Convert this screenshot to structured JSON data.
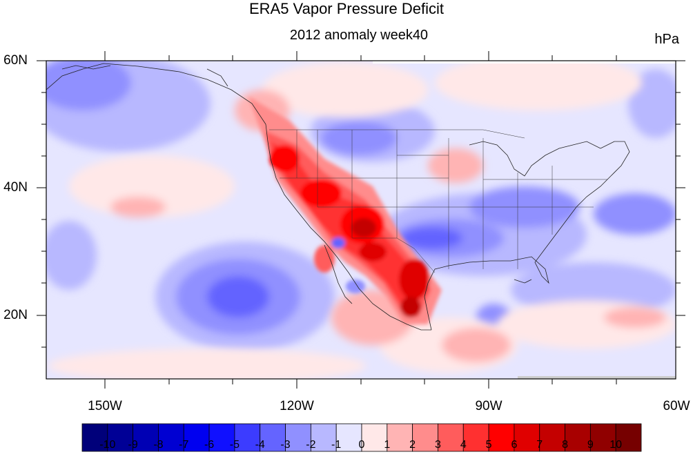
{
  "title": "ERA5 Vapor Pressure Deficit",
  "subtitle": "2012 anomaly week40",
  "units": "hPa",
  "lat_labels": [
    "60N",
    "40N",
    "20N"
  ],
  "lon_labels": [
    "150W",
    "120W",
    "90W",
    "60W"
  ],
  "colorbar": {
    "labels": [
      "-10",
      "-9",
      "-8",
      "-7",
      "-6",
      "-5",
      "-4",
      "-3",
      "-2",
      "-1",
      "0",
      "1",
      "2",
      "3",
      "4",
      "5",
      "6",
      "7",
      "8",
      "9",
      "10"
    ],
    "colors": [
      "#00007a",
      "#000096",
      "#0000b4",
      "#0000d2",
      "#0000f0",
      "#1010ff",
      "#3c3cff",
      "#6464ff",
      "#9090ff",
      "#b8b8ff",
      "#e6e6ff",
      "#ffe8e8",
      "#ffb4b4",
      "#ff8c8c",
      "#ff5c5c",
      "#ff3030",
      "#ff0000",
      "#e00000",
      "#c40000",
      "#a80000",
      "#900000",
      "#760000"
    ]
  },
  "map": {
    "lon_range": [
      -160,
      -60
    ],
    "lat_range": [
      10,
      60
    ],
    "background_anomaly": "slightly negative (light blue) over north Pacific and Canada",
    "features": [
      {
        "region": "US Southwest / Mexico",
        "anomaly": "strong positive (red, up to ~8-10)"
      },
      {
        "region": "Pacific Northwest",
        "anomaly": "positive (red, ~5-6)"
      },
      {
        "region": "Texas / Gulf / Southeast US",
        "anomaly": "negative (blue, ~-4 to -5)"
      },
      {
        "region": "Subtropical east Pacific near 25N 140W",
        "anomaly": "negative (blue, ~-4)"
      },
      {
        "region": "North-central Plains",
        "anomaly": "negative (blue, ~-2 to -3)"
      }
    ]
  }
}
